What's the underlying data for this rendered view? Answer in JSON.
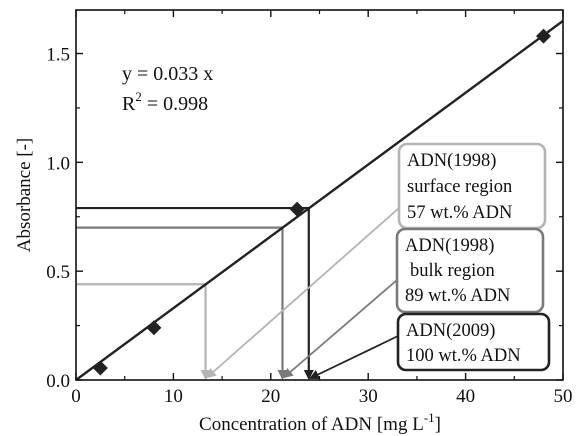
{
  "chart_data": {
    "type": "scatter",
    "xlabel": "Concentration of ADN [mg L",
    "xlabel_sup": "-1",
    "xlabel_end": "]",
    "ylabel": "Absorbance [-]",
    "xlim": [
      0,
      50
    ],
    "ylim": [
      0,
      1.7
    ],
    "x_ticks": [
      0,
      10,
      20,
      30,
      40,
      50
    ],
    "y_ticks": [
      0.0,
      0.5,
      1.0,
      1.5
    ],
    "y_tick_labels": [
      "0.0",
      "0.5",
      "1.0",
      "1.5"
    ],
    "grid": false,
    "points": [
      {
        "x": 2.5,
        "y": 0.055
      },
      {
        "x": 8.0,
        "y": 0.24
      },
      {
        "x": 22.7,
        "y": 0.785
      },
      {
        "x": 48.0,
        "y": 1.58
      }
    ],
    "fit": {
      "slope": 0.033,
      "equation": "y = 0.033 x",
      "r2_prefix": "R",
      "r2_sup": "2",
      "r2_value": " = 0.998"
    },
    "readings": [
      {
        "key": "adn2009",
        "absorbance": 0.79,
        "concentration": 23.9,
        "color": "#222222",
        "box_lines": [
          "ADN(2009)",
          "100 wt.% ADN"
        ]
      },
      {
        "key": "bulk",
        "absorbance": 0.7,
        "concentration": 21.2,
        "color": "#7a7a7a",
        "box_lines": [
          "ADN(1998)",
          "bulk region",
          "89 wt.% ADN"
        ]
      },
      {
        "key": "surface",
        "absorbance": 0.44,
        "concentration": 13.3,
        "color": "#b4b4b4",
        "box_lines": [
          "ADN(1998)",
          "surface region",
          "57 wt.% ADN"
        ]
      }
    ]
  }
}
